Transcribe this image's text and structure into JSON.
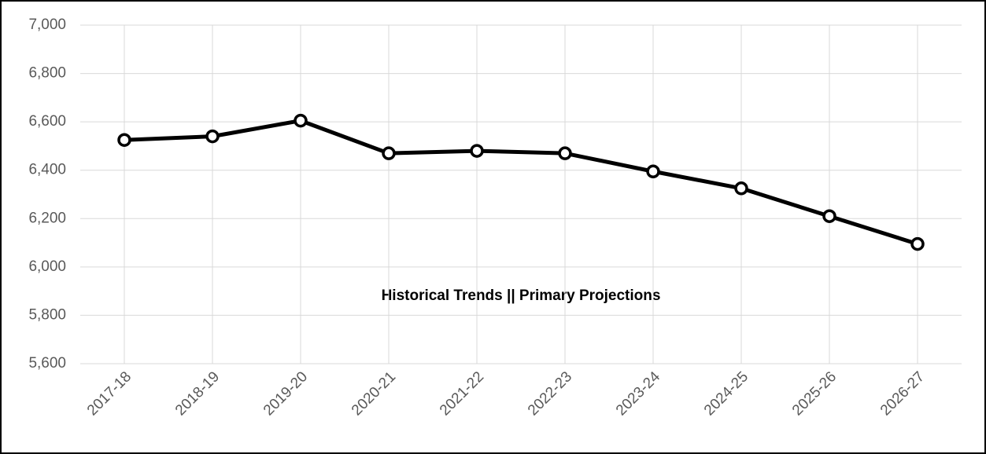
{
  "chart_data": {
    "type": "line",
    "annotation": "Historical Trends || Primary Projections",
    "categories": [
      "2017-18",
      "2018-19",
      "2019-20",
      "2020-21",
      "2021-22",
      "2022-23",
      "2023-24",
      "2024-25",
      "2025-26",
      "2026-27"
    ],
    "values": [
      6525,
      6540,
      6605,
      6470,
      6480,
      6470,
      6395,
      6325,
      6210,
      6095
    ],
    "color": "#000000",
    "ylim": [
      5600,
      7000
    ],
    "yticks": [
      {
        "value": 5600,
        "label": "5,600"
      },
      {
        "value": 5800,
        "label": "5,800"
      },
      {
        "value": 6000,
        "label": "6,000"
      },
      {
        "value": 6200,
        "label": "6,200"
      },
      {
        "value": 6400,
        "label": "6,400"
      },
      {
        "value": 6600,
        "label": "6,600"
      },
      {
        "value": 6800,
        "label": "6,800"
      },
      {
        "value": 7000,
        "label": "7,000"
      }
    ],
    "grid": true
  }
}
